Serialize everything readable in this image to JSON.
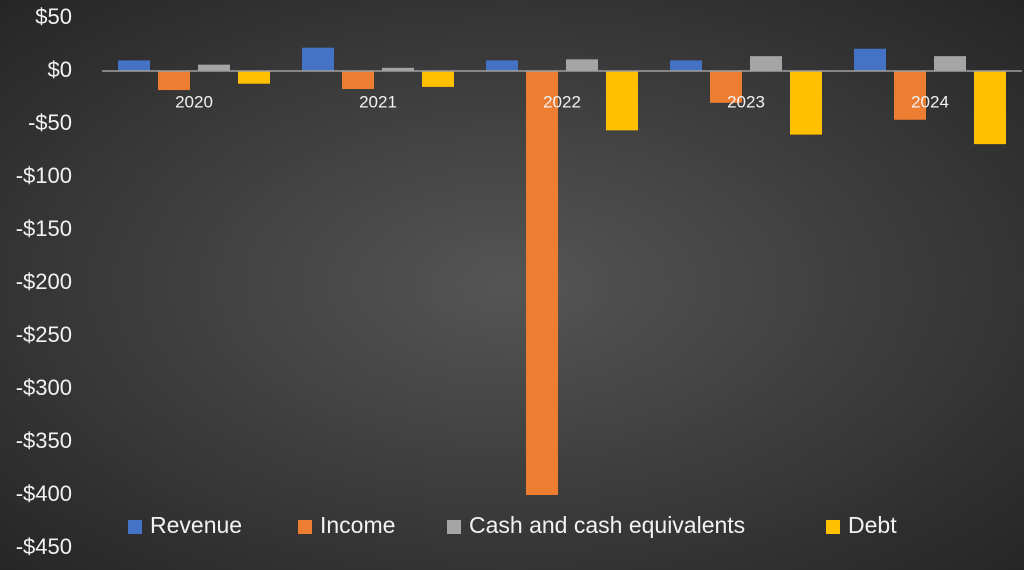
{
  "chart_data": {
    "type": "bar",
    "categories": [
      "2020",
      "2021",
      "2022",
      "2023",
      "2024"
    ],
    "series": [
      {
        "name": "Revenue",
        "color": "#4472c4",
        "values": [
          10,
          22,
          10,
          10,
          21
        ]
      },
      {
        "name": "Income",
        "color": "#ed7d31",
        "values": [
          -18,
          -17,
          -400,
          -30,
          -46
        ]
      },
      {
        "name": "Cash and cash equivalents",
        "color": "#a5a5a5",
        "values": [
          6,
          3,
          11,
          14,
          14
        ]
      },
      {
        "name": "Debt",
        "color": "#ffc000",
        "values": [
          -12,
          -15,
          -56,
          -60,
          -69
        ]
      }
    ],
    "ylim": [
      -450,
      50
    ],
    "yticks": [
      {
        "value": 50,
        "label": "$50"
      },
      {
        "value": 0,
        "label": "$0"
      },
      {
        "value": -50,
        "label": "-$50"
      },
      {
        "value": -100,
        "label": "-$100"
      },
      {
        "value": -150,
        "label": "-$150"
      },
      {
        "value": -200,
        "label": "-$200"
      },
      {
        "value": -250,
        "label": "-$250"
      },
      {
        "value": -300,
        "label": "-$300"
      },
      {
        "value": -350,
        "label": "-$350"
      },
      {
        "value": -400,
        "label": "-$400"
      },
      {
        "value": -450,
        "label": "-$450"
      }
    ],
    "grid": false,
    "legend": "bottom"
  }
}
